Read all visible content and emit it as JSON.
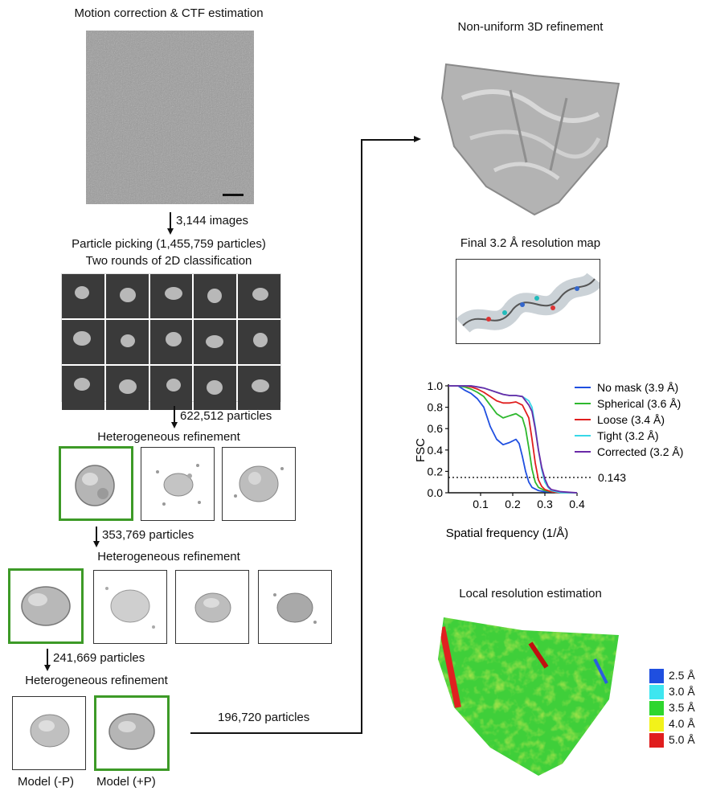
{
  "left": {
    "motion_title": "Motion correction & CTF estimation",
    "images_count": "3,144 images",
    "picking_line1": "Particle picking (1,455,759 particles)",
    "picking_line2": "Two rounds of 2D classification",
    "count_after_2d": "622,512 particles",
    "hetero_title_1": "Heterogeneous refinement",
    "count_after_hetero1": "353,769 particles",
    "hetero_title_2": "Heterogeneous refinement",
    "count_after_hetero2": "241,669 particles",
    "hetero_title_3": "Heterogeneous refinement",
    "model_minus": "Model (-P)",
    "model_plus": "Model (+P)",
    "to_refinement_count": "196,720 particles"
  },
  "right": {
    "nu_title": "Non-uniform 3D refinement",
    "final_title": "Final 3.2 Å resolution map",
    "local_title": "Local resolution estimation",
    "scale": [
      {
        "label": "2.5 Å",
        "color": "#1f4fe0"
      },
      {
        "label": "3.0 Å",
        "color": "#3ee6f0"
      },
      {
        "label": "3.5 Å",
        "color": "#2ed62e"
      },
      {
        "label": "4.0 Å",
        "color": "#f2f21a"
      },
      {
        "label": "5.0 Å",
        "color": "#e01e1e"
      }
    ]
  },
  "chart_data": {
    "type": "line",
    "title": "",
    "xlabel": "Spatial frequency (1/Å)",
    "ylabel": "FSC",
    "xlim": [
      0,
      0.4
    ],
    "ylim": [
      0,
      1.0
    ],
    "xticks": [
      "0.1",
      "0.2",
      "0.3",
      "0.4"
    ],
    "yticks": [
      "0.0",
      "0.2",
      "0.4",
      "0.6",
      "0.8",
      "1.0"
    ],
    "threshold": {
      "value": 0.143,
      "label": "0.143"
    },
    "legend_position": "right",
    "series": [
      {
        "name": "No mask (3.9 Å)",
        "color": "#1f4fe0",
        "x": [
          0.0,
          0.03,
          0.05,
          0.07,
          0.09,
          0.11,
          0.13,
          0.15,
          0.17,
          0.19,
          0.21,
          0.22,
          0.23,
          0.24,
          0.25,
          0.26,
          0.28,
          0.3,
          0.32,
          0.35,
          0.4
        ],
        "y": [
          1.0,
          1.0,
          0.96,
          0.93,
          0.88,
          0.8,
          0.62,
          0.5,
          0.45,
          0.47,
          0.5,
          0.46,
          0.34,
          0.2,
          0.1,
          0.05,
          0.02,
          0.01,
          0.01,
          0.0,
          0.0
        ]
      },
      {
        "name": "Spherical (3.6 Å)",
        "color": "#2eb82e",
        "x": [
          0.0,
          0.03,
          0.05,
          0.07,
          0.09,
          0.11,
          0.13,
          0.15,
          0.17,
          0.19,
          0.21,
          0.23,
          0.24,
          0.25,
          0.26,
          0.27,
          0.28,
          0.3,
          0.32,
          0.35,
          0.4
        ],
        "y": [
          1.0,
          1.0,
          0.99,
          0.97,
          0.94,
          0.9,
          0.82,
          0.74,
          0.7,
          0.72,
          0.74,
          0.7,
          0.6,
          0.42,
          0.22,
          0.1,
          0.05,
          0.02,
          0.01,
          0.0,
          0.0
        ]
      },
      {
        "name": "Loose (3.4 Å)",
        "color": "#e01e1e",
        "x": [
          0.0,
          0.03,
          0.05,
          0.07,
          0.09,
          0.11,
          0.13,
          0.15,
          0.17,
          0.19,
          0.21,
          0.23,
          0.25,
          0.26,
          0.27,
          0.28,
          0.29,
          0.3,
          0.32,
          0.35,
          0.4
        ],
        "y": [
          1.0,
          1.0,
          1.0,
          0.99,
          0.97,
          0.94,
          0.9,
          0.86,
          0.84,
          0.84,
          0.85,
          0.82,
          0.7,
          0.5,
          0.28,
          0.12,
          0.06,
          0.03,
          0.01,
          0.0,
          0.0
        ]
      },
      {
        "name": "Tight (3.2 Å)",
        "color": "#38d8e8",
        "x": [
          0.0,
          0.03,
          0.05,
          0.07,
          0.09,
          0.11,
          0.13,
          0.15,
          0.17,
          0.19,
          0.21,
          0.23,
          0.25,
          0.26,
          0.27,
          0.28,
          0.29,
          0.3,
          0.31,
          0.32,
          0.35,
          0.4
        ],
        "y": [
          1.0,
          1.0,
          1.0,
          1.0,
          0.99,
          0.98,
          0.96,
          0.94,
          0.92,
          0.91,
          0.91,
          0.9,
          0.86,
          0.8,
          0.62,
          0.4,
          0.22,
          0.1,
          0.05,
          0.02,
          0.0,
          0.0
        ]
      },
      {
        "name": "Corrected (3.2 Å)",
        "color": "#6a2aa8",
        "x": [
          0.0,
          0.03,
          0.05,
          0.07,
          0.09,
          0.11,
          0.13,
          0.15,
          0.17,
          0.19,
          0.21,
          0.23,
          0.25,
          0.26,
          0.27,
          0.28,
          0.29,
          0.3,
          0.31,
          0.32,
          0.35,
          0.4
        ],
        "y": [
          1.0,
          1.0,
          1.0,
          1.0,
          0.99,
          0.98,
          0.96,
          0.94,
          0.92,
          0.91,
          0.91,
          0.9,
          0.82,
          0.76,
          0.6,
          0.4,
          0.24,
          0.13,
          0.06,
          0.03,
          0.01,
          0.0
        ]
      }
    ]
  }
}
